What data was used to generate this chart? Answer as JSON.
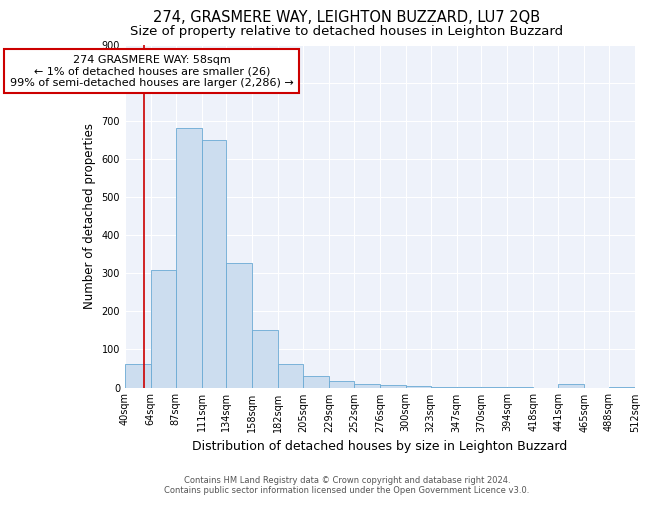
{
  "title": "274, GRASMERE WAY, LEIGHTON BUZZARD, LU7 2QB",
  "subtitle": "Size of property relative to detached houses in Leighton Buzzard",
  "xlabel": "Distribution of detached houses by size in Leighton Buzzard",
  "ylabel": "Number of detached properties",
  "bar_color": "#ccddef",
  "bar_edge_color": "#6aaad4",
  "background_color": "#eef2fa",
  "grid_color": "#ffffff",
  "bins": [
    40,
    64,
    87,
    111,
    134,
    158,
    182,
    205,
    229,
    252,
    276,
    300,
    323,
    347,
    370,
    394,
    418,
    441,
    465,
    488,
    512
  ],
  "values": [
    63,
    310,
    683,
    650,
    327,
    150,
    63,
    30,
    18,
    10,
    6,
    3,
    2,
    1,
    1,
    1,
    0,
    8,
    0,
    1
  ],
  "property_size": 58,
  "red_line_color": "#cc0000",
  "annotation_text": "274 GRASMERE WAY: 58sqm\n← 1% of detached houses are smaller (26)\n99% of semi-detached houses are larger (2,286) →",
  "annotation_box_color": "#ffffff",
  "annotation_border_color": "#cc0000",
  "ylim": [
    0,
    900
  ],
  "yticks": [
    0,
    100,
    200,
    300,
    400,
    500,
    600,
    700,
    800,
    900
  ],
  "footer": "Contains HM Land Registry data © Crown copyright and database right 2024.\nContains public sector information licensed under the Open Government Licence v3.0.",
  "title_fontsize": 10.5,
  "subtitle_fontsize": 9.5,
  "tick_label_fontsize": 7,
  "ylabel_fontsize": 8.5,
  "xlabel_fontsize": 9,
  "annotation_fontsize": 8,
  "footer_fontsize": 6
}
